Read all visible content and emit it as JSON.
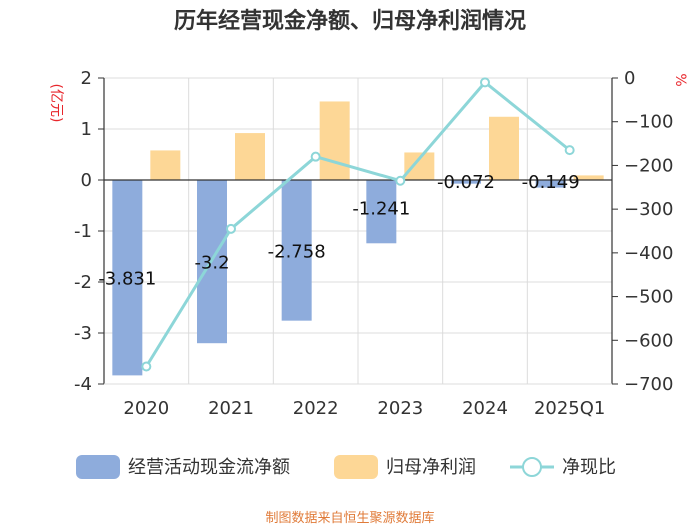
{
  "chart_data": {
    "type": "bar",
    "title": "历年经营现金净额、归母净利润情况",
    "categories": [
      "2020",
      "2021",
      "2022",
      "2023",
      "2024",
      "2025Q1"
    ],
    "left_axis": {
      "unit": "(亿元)",
      "ylim": [
        -4,
        2
      ],
      "ticks": [
        2,
        1,
        0,
        -1,
        -2,
        -3,
        -4
      ]
    },
    "right_axis": {
      "unit": "%",
      "ylim": [
        -700,
        0
      ],
      "ticks": [
        0,
        -100,
        -200,
        -300,
        -400,
        -500,
        -600,
        -700
      ]
    },
    "series": [
      {
        "name": "经营活动现金流净额",
        "type": "bar",
        "axis": "left",
        "color": "#8eacdc",
        "values": [
          -3.831,
          -3.2,
          -2.758,
          -1.241,
          -0.072,
          -0.149
        ],
        "labels": [
          "-3.831",
          "-3.2",
          "-2.758",
          "-1.241",
          "-0.072",
          "-0.149"
        ]
      },
      {
        "name": "归母净利润",
        "type": "bar",
        "axis": "left",
        "color": "#fdd796",
        "values": [
          0.58,
          0.92,
          1.54,
          0.54,
          1.24,
          0.09
        ]
      },
      {
        "name": "净现比",
        "type": "line",
        "axis": "right",
        "color": "#8dd6d8",
        "values": [
          -660,
          -345,
          -180,
          -235,
          -10,
          -165
        ]
      }
    ],
    "source": "制图数据来自恒生聚源数据库"
  }
}
